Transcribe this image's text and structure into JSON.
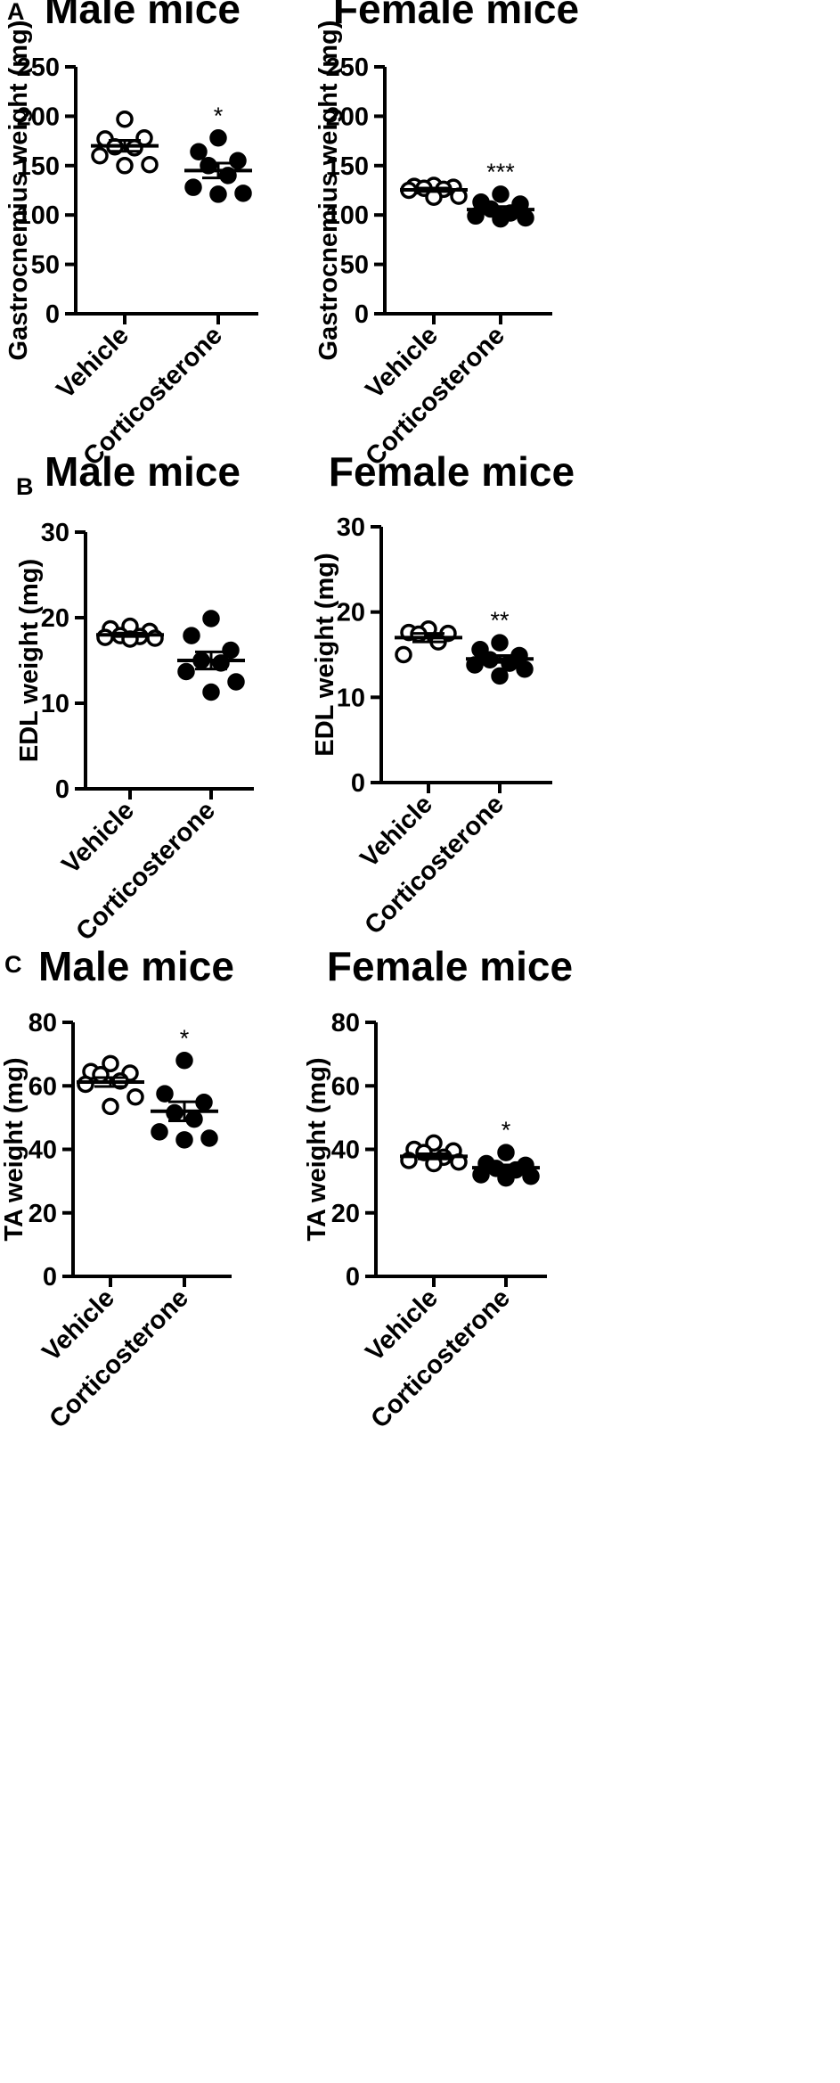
{
  "colors": {
    "ink": "#000000",
    "background": "#ffffff"
  },
  "chart_data": [
    {
      "panel": "A",
      "type": "scatter",
      "title": "Male mice",
      "ylabel": "Gastrocnemius weight (mg)",
      "ylim": [
        0,
        250
      ],
      "yticks": [
        0,
        50,
        100,
        150,
        200,
        250
      ],
      "categories": [
        "Vehicle",
        "Corticosterone"
      ],
      "series": [
        {
          "name": "Vehicle",
          "marker": "open",
          "values": [
            197,
            177,
            178,
            169,
            168,
            160,
            151,
            150
          ],
          "mean": 170,
          "sem": 5.5,
          "sig": ""
        },
        {
          "name": "Corticosterone",
          "marker": "filled",
          "values": [
            178,
            164,
            155,
            150,
            140,
            128,
            122,
            121
          ],
          "mean": 145,
          "sem": 7.5,
          "sig": "*"
        }
      ]
    },
    {
      "panel": "",
      "type": "scatter",
      "title": "Female mice",
      "ylabel": "Gastrocnemius weight (mg)",
      "ylim": [
        0,
        250
      ],
      "yticks": [
        0,
        50,
        100,
        150,
        200,
        250
      ],
      "categories": [
        "Vehicle",
        "Corticosterone"
      ],
      "series": [
        {
          "name": "Vehicle",
          "marker": "open",
          "values": [
            130,
            129,
            128,
            127,
            126,
            125,
            119,
            118
          ],
          "mean": 125.5,
          "sem": 1.7,
          "sig": ""
        },
        {
          "name": "Corticosterone",
          "marker": "filled",
          "values": [
            121,
            113,
            111,
            106,
            102,
            99,
            97,
            96
          ],
          "mean": 105.5,
          "sem": 3.0,
          "sig": "***"
        }
      ]
    },
    {
      "panel": "B",
      "type": "scatter",
      "title": "Male mice",
      "ylabel": "EDL weight (mg)",
      "ylim": [
        0,
        30
      ],
      "yticks": [
        0,
        10,
        20,
        30
      ],
      "categories": [
        "Vehicle",
        "Corticosterone"
      ],
      "series": [
        {
          "name": "Vehicle",
          "marker": "open",
          "values": [
            19.0,
            18.7,
            18.4,
            17.9,
            17.8,
            17.7,
            17.6,
            17.5
          ],
          "mean": 18.0,
          "sem": 0.2,
          "sig": ""
        },
        {
          "name": "Corticosterone",
          "marker": "filled",
          "values": [
            19.9,
            17.9,
            16.2,
            15.0,
            14.7,
            13.7,
            12.5,
            11.3
          ],
          "mean": 15.0,
          "sem": 1.0,
          "sig": ""
        }
      ]
    },
    {
      "panel": "",
      "type": "scatter",
      "title": "Female mice",
      "ylabel": "EDL weight (mg)",
      "ylim": [
        0,
        30
      ],
      "yticks": [
        0,
        10,
        20,
        30
      ],
      "categories": [
        "Vehicle",
        "Corticosterone"
      ],
      "series": [
        {
          "name": "Vehicle",
          "marker": "open",
          "values": [
            18.0,
            17.6,
            17.5,
            17.4,
            16.5,
            15.0
          ],
          "mean": 17.0,
          "sem": 0.5,
          "sig": ""
        },
        {
          "name": "Corticosterone",
          "marker": "filled",
          "values": [
            16.4,
            15.6,
            14.9,
            14.4,
            14.0,
            13.8,
            13.3,
            12.5
          ],
          "mean": 14.5,
          "sem": 0.4,
          "sig": "**"
        }
      ]
    },
    {
      "panel": "C",
      "type": "scatter",
      "title": "Male mice",
      "ylabel": "TA weight (mg)",
      "ylim": [
        0,
        80
      ],
      "yticks": [
        0,
        20,
        40,
        60,
        80
      ],
      "categories": [
        "Vehicle",
        "Corticosterone"
      ],
      "series": [
        {
          "name": "Vehicle",
          "marker": "open",
          "values": [
            67.0,
            64.5,
            64.0,
            63.5,
            61.5,
            60.5,
            56.5,
            53.5
          ],
          "mean": 61.2,
          "sem": 1.4,
          "sig": ""
        },
        {
          "name": "Corticosterone",
          "marker": "filled",
          "values": [
            68.0,
            57.5,
            54.8,
            51.5,
            49.5,
            45.5,
            43.5,
            43.0
          ],
          "mean": 52.0,
          "sem": 3.0,
          "sig": "*"
        }
      ]
    },
    {
      "panel": "",
      "type": "scatter",
      "title": "Female mice",
      "ylabel": "TA weight (mg)",
      "ylim": [
        0,
        80
      ],
      "yticks": [
        0,
        20,
        40,
        60,
        80
      ],
      "categories": [
        "Vehicle",
        "Corticosterone"
      ],
      "series": [
        {
          "name": "Vehicle",
          "marker": "open",
          "values": [
            42.0,
            40.0,
            39.5,
            39.0,
            37.5,
            36.5,
            36.0,
            35.5
          ],
          "mean": 37.8,
          "sem": 0.8,
          "sig": ""
        },
        {
          "name": "Corticosterone",
          "marker": "filled",
          "values": [
            39.0,
            35.5,
            35.0,
            34.0,
            33.5,
            32.0,
            31.5,
            31.0
          ],
          "mean": 34.2,
          "sem": 0.9,
          "sig": "*"
        }
      ]
    }
  ]
}
